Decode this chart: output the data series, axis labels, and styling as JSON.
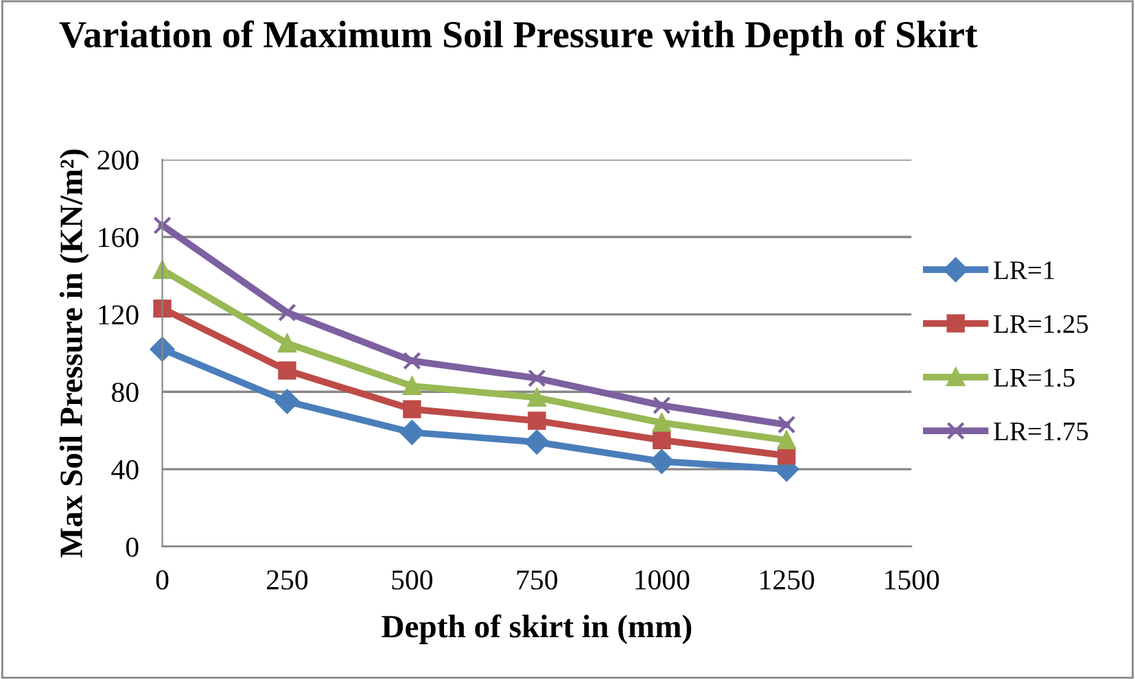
{
  "chart_data": {
    "type": "line",
    "title": "Variation of Maximum Soil Pressure with Depth of Skirt",
    "xlabel": "Depth of skirt in (mm)",
    "ylabel": "Max Soil Pressure in (KN/m²)",
    "x": [
      0,
      250,
      500,
      750,
      1000,
      1250
    ],
    "series": [
      {
        "name": "LR=1",
        "color": "#4a7ebb",
        "marker": "diamond",
        "values": [
          102,
          75,
          59,
          54,
          44,
          40
        ]
      },
      {
        "name": "LR=1.25",
        "color": "#be4b48",
        "marker": "square",
        "values": [
          123,
          91,
          71,
          65,
          55,
          47
        ]
      },
      {
        "name": "LR=1.5",
        "color": "#98b954",
        "marker": "triangle",
        "values": [
          143,
          105,
          83,
          77,
          64,
          55
        ]
      },
      {
        "name": "LR=1.75",
        "color": "#7d60a0",
        "marker": "cross",
        "values": [
          166,
          121,
          96,
          87,
          73,
          63
        ]
      }
    ],
    "xlim": [
      0,
      1500
    ],
    "xticks": [
      0,
      250,
      500,
      750,
      1000,
      1250,
      1500
    ],
    "ylim": [
      0,
      200
    ],
    "yticks": [
      0,
      40,
      80,
      120,
      160,
      200
    ],
    "grid": "y",
    "legend": "right",
    "line_style": "solid"
  }
}
